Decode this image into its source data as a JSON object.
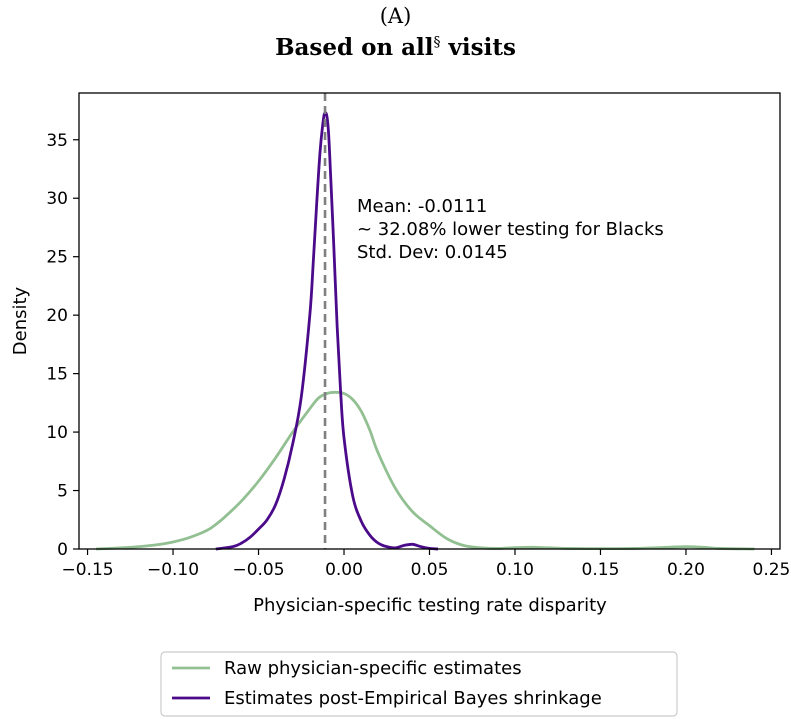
{
  "panel_label": "(A)",
  "title": {
    "main": "Based on all",
    "superscript": "§",
    "suffix": "visits"
  },
  "colors": {
    "raw": "#92c092",
    "shrunk": "#4b0a8a",
    "mean_line": "#808080",
    "axis": "#000000"
  },
  "chart_data": {
    "type": "line",
    "xlabel": "Physician-specific testing rate disparity",
    "ylabel": "Density",
    "xlim": [
      -0.155,
      0.255
    ],
    "ylim": [
      0,
      39
    ],
    "xticks": [
      -0.15,
      -0.1,
      -0.05,
      0.0,
      0.05,
      0.1,
      0.15,
      0.2,
      0.25
    ],
    "xtick_labels": [
      "−0.15",
      "−0.10",
      "−0.05",
      "0.00",
      "0.05",
      "0.10",
      "0.15",
      "0.20",
      "0.25"
    ],
    "yticks": [
      0,
      5,
      10,
      15,
      20,
      25,
      30,
      35
    ],
    "ytick_labels": [
      "0",
      "5",
      "10",
      "15",
      "20",
      "25",
      "30",
      "35"
    ],
    "grid": false,
    "legend_placement": "bottom-center",
    "mean_line_x": -0.0111,
    "annotation": [
      "Mean: -0.0111",
      "~ 32.08% lower testing for Blacks",
      "Std. Dev: 0.0145"
    ],
    "series": [
      {
        "name": "Raw physician-specific estimates",
        "color": "#92c092",
        "x": [
          -0.145,
          -0.13,
          -0.12,
          -0.11,
          -0.1,
          -0.09,
          -0.08,
          -0.075,
          -0.07,
          -0.06,
          -0.05,
          -0.04,
          -0.03,
          -0.02,
          -0.015,
          -0.01,
          -0.005,
          0.0,
          0.005,
          0.01,
          0.015,
          0.02,
          0.03,
          0.04,
          0.05,
          0.06,
          0.07,
          0.08,
          0.09,
          0.1,
          0.11,
          0.12,
          0.13,
          0.15,
          0.17,
          0.19,
          0.2,
          0.21,
          0.22,
          0.24
        ],
        "y": [
          0.0,
          0.1,
          0.2,
          0.35,
          0.6,
          1.0,
          1.6,
          2.1,
          2.7,
          4.1,
          5.8,
          7.8,
          10.0,
          12.0,
          12.9,
          13.3,
          13.4,
          13.3,
          12.8,
          11.8,
          10.2,
          8.2,
          5.2,
          3.2,
          2.0,
          0.9,
          0.3,
          0.1,
          0.05,
          0.12,
          0.15,
          0.1,
          0.05,
          0.03,
          0.05,
          0.15,
          0.2,
          0.15,
          0.05,
          0.0
        ]
      },
      {
        "name": "Estimates post-Empirical Bayes shrinkage",
        "color": "#4b0a8a",
        "x": [
          -0.075,
          -0.065,
          -0.06,
          -0.055,
          -0.05,
          -0.045,
          -0.04,
          -0.035,
          -0.03,
          -0.025,
          -0.02,
          -0.018,
          -0.016,
          -0.014,
          -0.012,
          -0.011,
          -0.01,
          -0.009,
          -0.008,
          -0.006,
          -0.004,
          -0.002,
          0.0,
          0.005,
          0.01,
          0.015,
          0.02,
          0.025,
          0.03,
          0.035,
          0.04,
          0.045,
          0.05,
          0.055
        ],
        "y": [
          0.0,
          0.2,
          0.5,
          1.0,
          1.7,
          2.5,
          3.8,
          6.0,
          9.0,
          13.0,
          20.0,
          24.5,
          29.5,
          34.0,
          36.8,
          37.3,
          37.0,
          35.5,
          32.5,
          26.0,
          19.0,
          13.5,
          9.5,
          4.6,
          2.4,
          1.2,
          0.5,
          0.2,
          0.1,
          0.3,
          0.4,
          0.2,
          0.05,
          0.0
        ]
      }
    ]
  }
}
